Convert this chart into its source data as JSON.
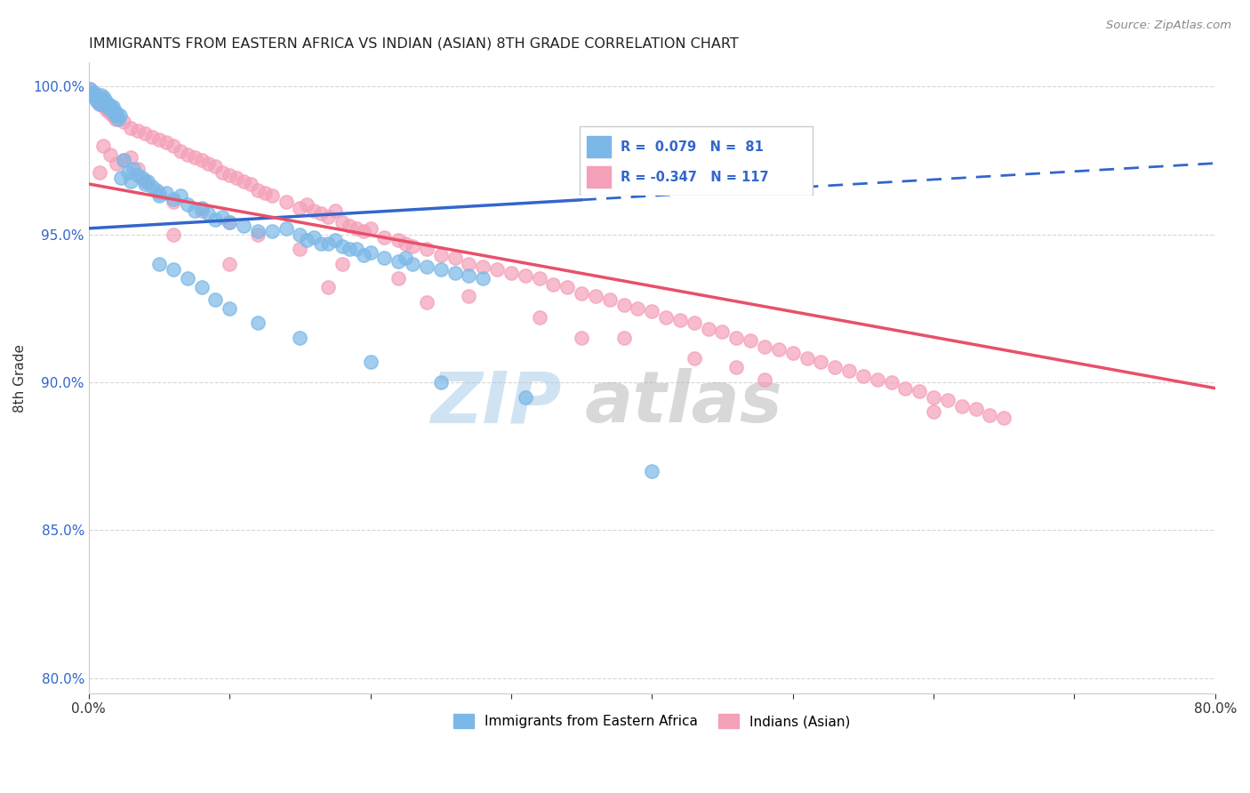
{
  "title": "IMMIGRANTS FROM EASTERN AFRICA VS INDIAN (ASIAN) 8TH GRADE CORRELATION CHART",
  "source": "Source: ZipAtlas.com",
  "ylabel": "8th Grade",
  "xlim": [
    0.0,
    0.8
  ],
  "ylim": [
    0.795,
    1.008
  ],
  "yticks": [
    0.8,
    0.85,
    0.9,
    0.95,
    1.0
  ],
  "yticklabels": [
    "80.0%",
    "85.0%",
    "90.0%",
    "95.0%",
    "100.0%"
  ],
  "xtick_positions": [
    0.0,
    0.1,
    0.2,
    0.3,
    0.4,
    0.5,
    0.6,
    0.7,
    0.8
  ],
  "xtick_labels": [
    "0.0%",
    "",
    "",
    "",
    "",
    "",
    "",
    "",
    "80.0%"
  ],
  "R_blue": 0.079,
  "N_blue": 81,
  "R_pink": -0.347,
  "N_pink": 117,
  "blue_scatter_color": "#7bb8e8",
  "pink_scatter_color": "#f4a0b8",
  "blue_line_color": "#3366cc",
  "pink_line_color": "#e8506a",
  "blue_line_solid_end": 0.35,
  "blue_line_y0": 0.952,
  "blue_line_y1": 0.974,
  "pink_line_y0": 0.967,
  "pink_line_y1": 0.898,
  "blue_scatter": [
    [
      0.001,
      0.999
    ],
    [
      0.002,
      0.997
    ],
    [
      0.003,
      0.997
    ],
    [
      0.004,
      0.998
    ],
    [
      0.005,
      0.997
    ],
    [
      0.006,
      0.995
    ],
    [
      0.007,
      0.996
    ],
    [
      0.008,
      0.994
    ],
    [
      0.009,
      0.997
    ],
    [
      0.01,
      0.994
    ],
    [
      0.011,
      0.996
    ],
    [
      0.012,
      0.995
    ],
    [
      0.013,
      0.993
    ],
    [
      0.014,
      0.994
    ],
    [
      0.015,
      0.993
    ],
    [
      0.016,
      0.992
    ],
    [
      0.017,
      0.993
    ],
    [
      0.018,
      0.992
    ],
    [
      0.019,
      0.99
    ],
    [
      0.02,
      0.991
    ],
    [
      0.021,
      0.989
    ],
    [
      0.022,
      0.99
    ],
    [
      0.023,
      0.969
    ],
    [
      0.025,
      0.975
    ],
    [
      0.028,
      0.971
    ],
    [
      0.03,
      0.968
    ],
    [
      0.032,
      0.972
    ],
    [
      0.035,
      0.97
    ],
    [
      0.038,
      0.969
    ],
    [
      0.04,
      0.967
    ],
    [
      0.042,
      0.968
    ],
    [
      0.045,
      0.966
    ],
    [
      0.048,
      0.965
    ],
    [
      0.05,
      0.963
    ],
    [
      0.055,
      0.964
    ],
    [
      0.06,
      0.962
    ],
    [
      0.065,
      0.963
    ],
    [
      0.07,
      0.96
    ],
    [
      0.075,
      0.958
    ],
    [
      0.08,
      0.959
    ],
    [
      0.085,
      0.957
    ],
    [
      0.09,
      0.955
    ],
    [
      0.095,
      0.956
    ],
    [
      0.1,
      0.954
    ],
    [
      0.11,
      0.953
    ],
    [
      0.12,
      0.951
    ],
    [
      0.13,
      0.951
    ],
    [
      0.14,
      0.952
    ],
    [
      0.15,
      0.95
    ],
    [
      0.155,
      0.948
    ],
    [
      0.16,
      0.949
    ],
    [
      0.165,
      0.947
    ],
    [
      0.17,
      0.947
    ],
    [
      0.175,
      0.948
    ],
    [
      0.18,
      0.946
    ],
    [
      0.185,
      0.945
    ],
    [
      0.19,
      0.945
    ],
    [
      0.195,
      0.943
    ],
    [
      0.2,
      0.944
    ],
    [
      0.21,
      0.942
    ],
    [
      0.22,
      0.941
    ],
    [
      0.225,
      0.942
    ],
    [
      0.23,
      0.94
    ],
    [
      0.24,
      0.939
    ],
    [
      0.25,
      0.938
    ],
    [
      0.26,
      0.937
    ],
    [
      0.27,
      0.936
    ],
    [
      0.28,
      0.935
    ],
    [
      0.05,
      0.94
    ],
    [
      0.06,
      0.938
    ],
    [
      0.07,
      0.935
    ],
    [
      0.08,
      0.932
    ],
    [
      0.09,
      0.928
    ],
    [
      0.1,
      0.925
    ],
    [
      0.12,
      0.92
    ],
    [
      0.15,
      0.915
    ],
    [
      0.2,
      0.907
    ],
    [
      0.25,
      0.9
    ],
    [
      0.31,
      0.895
    ],
    [
      0.4,
      0.87
    ]
  ],
  "pink_scatter": [
    [
      0.001,
      0.999
    ],
    [
      0.002,
      0.998
    ],
    [
      0.003,
      0.997
    ],
    [
      0.004,
      0.996
    ],
    [
      0.005,
      0.997
    ],
    [
      0.006,
      0.996
    ],
    [
      0.007,
      0.995
    ],
    [
      0.008,
      0.994
    ],
    [
      0.009,
      0.996
    ],
    [
      0.01,
      0.995
    ],
    [
      0.011,
      0.993
    ],
    [
      0.012,
      0.994
    ],
    [
      0.013,
      0.992
    ],
    [
      0.014,
      0.993
    ],
    [
      0.015,
      0.991
    ],
    [
      0.016,
      0.992
    ],
    [
      0.017,
      0.99
    ],
    [
      0.018,
      0.991
    ],
    [
      0.019,
      0.989
    ],
    [
      0.02,
      0.99
    ],
    [
      0.025,
      0.988
    ],
    [
      0.03,
      0.986
    ],
    [
      0.035,
      0.985
    ],
    [
      0.04,
      0.984
    ],
    [
      0.045,
      0.983
    ],
    [
      0.05,
      0.982
    ],
    [
      0.055,
      0.981
    ],
    [
      0.06,
      0.98
    ],
    [
      0.065,
      0.978
    ],
    [
      0.07,
      0.977
    ],
    [
      0.075,
      0.976
    ],
    [
      0.08,
      0.975
    ],
    [
      0.085,
      0.974
    ],
    [
      0.09,
      0.973
    ],
    [
      0.095,
      0.971
    ],
    [
      0.1,
      0.97
    ],
    [
      0.105,
      0.969
    ],
    [
      0.11,
      0.968
    ],
    [
      0.115,
      0.967
    ],
    [
      0.12,
      0.965
    ],
    [
      0.125,
      0.964
    ],
    [
      0.13,
      0.963
    ],
    [
      0.14,
      0.961
    ],
    [
      0.15,
      0.959
    ],
    [
      0.155,
      0.96
    ],
    [
      0.16,
      0.958
    ],
    [
      0.165,
      0.957
    ],
    [
      0.17,
      0.956
    ],
    [
      0.175,
      0.958
    ],
    [
      0.18,
      0.954
    ],
    [
      0.185,
      0.953
    ],
    [
      0.19,
      0.952
    ],
    [
      0.195,
      0.951
    ],
    [
      0.2,
      0.952
    ],
    [
      0.21,
      0.949
    ],
    [
      0.22,
      0.948
    ],
    [
      0.225,
      0.947
    ],
    [
      0.23,
      0.946
    ],
    [
      0.24,
      0.945
    ],
    [
      0.25,
      0.943
    ],
    [
      0.26,
      0.942
    ],
    [
      0.27,
      0.94
    ],
    [
      0.28,
      0.939
    ],
    [
      0.29,
      0.938
    ],
    [
      0.3,
      0.937
    ],
    [
      0.31,
      0.936
    ],
    [
      0.32,
      0.935
    ],
    [
      0.33,
      0.933
    ],
    [
      0.34,
      0.932
    ],
    [
      0.35,
      0.93
    ],
    [
      0.36,
      0.929
    ],
    [
      0.37,
      0.928
    ],
    [
      0.38,
      0.926
    ],
    [
      0.39,
      0.925
    ],
    [
      0.4,
      0.924
    ],
    [
      0.41,
      0.922
    ],
    [
      0.42,
      0.921
    ],
    [
      0.43,
      0.92
    ],
    [
      0.44,
      0.918
    ],
    [
      0.45,
      0.917
    ],
    [
      0.46,
      0.915
    ],
    [
      0.47,
      0.914
    ],
    [
      0.48,
      0.912
    ],
    [
      0.49,
      0.911
    ],
    [
      0.5,
      0.91
    ],
    [
      0.51,
      0.908
    ],
    [
      0.52,
      0.907
    ],
    [
      0.53,
      0.905
    ],
    [
      0.54,
      0.904
    ],
    [
      0.55,
      0.902
    ],
    [
      0.56,
      0.901
    ],
    [
      0.57,
      0.9
    ],
    [
      0.58,
      0.898
    ],
    [
      0.59,
      0.897
    ],
    [
      0.6,
      0.895
    ],
    [
      0.61,
      0.894
    ],
    [
      0.62,
      0.892
    ],
    [
      0.63,
      0.891
    ],
    [
      0.64,
      0.889
    ],
    [
      0.65,
      0.888
    ],
    [
      0.02,
      0.974
    ],
    [
      0.025,
      0.975
    ],
    [
      0.03,
      0.976
    ],
    [
      0.035,
      0.972
    ],
    [
      0.04,
      0.968
    ],
    [
      0.05,
      0.964
    ],
    [
      0.06,
      0.961
    ],
    [
      0.08,
      0.958
    ],
    [
      0.1,
      0.954
    ],
    [
      0.12,
      0.95
    ],
    [
      0.15,
      0.945
    ],
    [
      0.18,
      0.94
    ],
    [
      0.22,
      0.935
    ],
    [
      0.27,
      0.929
    ],
    [
      0.32,
      0.922
    ],
    [
      0.38,
      0.915
    ],
    [
      0.43,
      0.908
    ],
    [
      0.48,
      0.901
    ],
    [
      0.01,
      0.98
    ],
    [
      0.015,
      0.977
    ],
    [
      0.008,
      0.971
    ],
    [
      0.06,
      0.95
    ],
    [
      0.1,
      0.94
    ],
    [
      0.17,
      0.932
    ],
    [
      0.24,
      0.927
    ],
    [
      0.35,
      0.915
    ],
    [
      0.46,
      0.905
    ],
    [
      0.6,
      0.89
    ]
  ],
  "background_color": "#ffffff",
  "grid_color": "#cccccc",
  "tick_color": "#3366cc",
  "watermark_zip_color": "#aacce8",
  "watermark_atlas_color": "#aaaaaa"
}
